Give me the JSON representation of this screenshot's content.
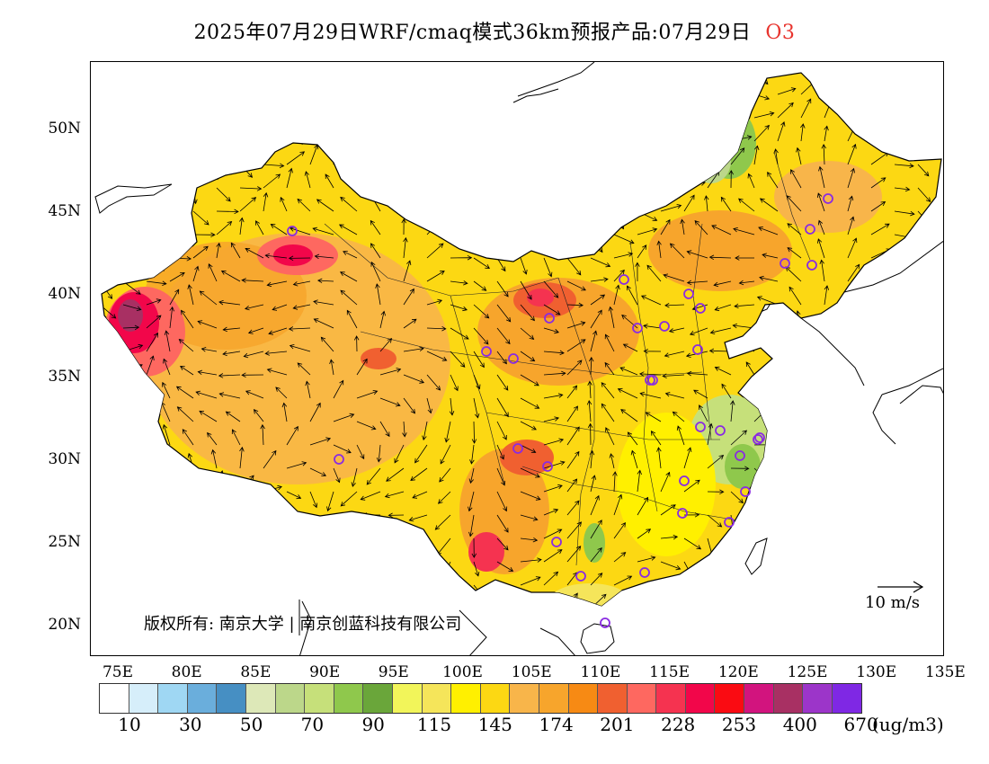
{
  "title": {
    "main": "2025年07月29日WRF/cmaq模式36km预报产品:07月29日",
    "species": "O3",
    "species_color": "#e8342e"
  },
  "map": {
    "lat_labels": [
      "50N",
      "45N",
      "40N",
      "35N",
      "30N",
      "25N",
      "20N"
    ],
    "lon_labels": [
      "75E",
      "80E",
      "85E",
      "90E",
      "95E",
      "100E",
      "105E",
      "110E",
      "115E",
      "120E",
      "125E",
      "130E",
      "135E"
    ],
    "copyright": "版权所有: 南京大学 | 南京创蓝科技有限公司",
    "wind_reference": "10 m/s"
  },
  "colorbar": {
    "colors": [
      "#ffffff",
      "#d6eefa",
      "#9fd7f3",
      "#6aaedc",
      "#468fc3",
      "#dde8b8",
      "#bcd78a",
      "#c6e07a",
      "#8fc84c",
      "#6aa63a",
      "#f2f55a",
      "#f5e55a",
      "#fff000",
      "#fcd813",
      "#f8b54a",
      "#f7a52c",
      "#f78a14",
      "#f06030",
      "#fe6860",
      "#f53350",
      "#f2064a",
      "#fa0b12",
      "#d2147e",
      "#a83063",
      "#9c35c9",
      "#7f28e4"
    ],
    "labels": [
      "10",
      "30",
      "50",
      "70",
      "90",
      "115",
      "145",
      "174",
      "201",
      "228",
      "253",
      "400",
      "670"
    ],
    "unit": "(ug/m3)"
  }
}
